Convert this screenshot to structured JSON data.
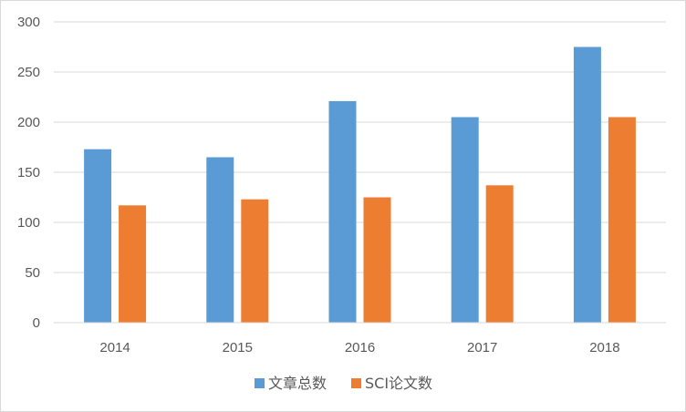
{
  "chart_data": {
    "type": "bar",
    "categories": [
      "2014",
      "2015",
      "2016",
      "2017",
      "2018"
    ],
    "series": [
      {
        "name": "文章总数",
        "values": [
          173,
          165,
          221,
          205,
          275
        ]
      },
      {
        "name": "SCI论文数",
        "values": [
          117,
          123,
          125,
          137,
          205
        ]
      }
    ],
    "ylim": [
      0,
      300
    ],
    "yticks": [
      0,
      50,
      100,
      150,
      200,
      250,
      300
    ],
    "grid": true,
    "legend": "bottom",
    "colors": {
      "series": [
        "#5b9bd5",
        "#ed7d31"
      ],
      "grid": "#d9d9d9",
      "text": "#595959"
    }
  }
}
